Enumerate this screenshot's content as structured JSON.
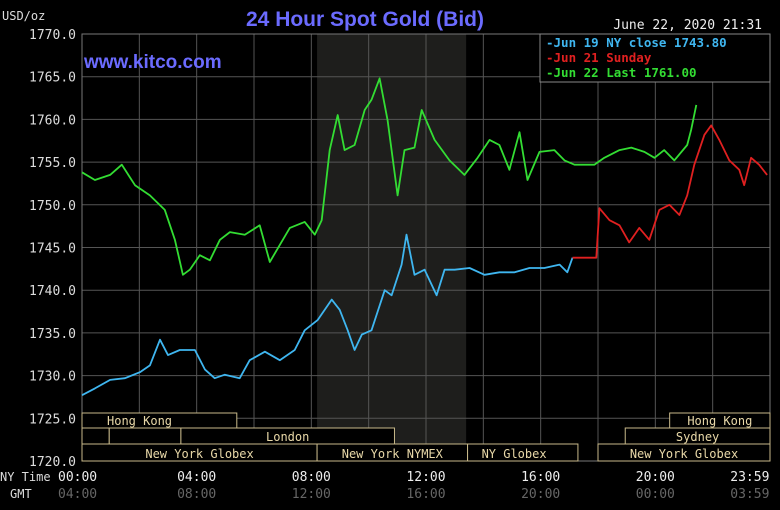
{
  "chart_data": {
    "type": "line",
    "title": "24 Hour Spot Gold (Bid)",
    "site": "www.kitco.com",
    "timestamp": "June 22, 2020 21:31",
    "ylabel": "USD/oz",
    "ylim": [
      1720,
      1770
    ],
    "yticks": [
      "1770.0",
      "1765.0",
      "1760.0",
      "1755.0",
      "1750.0",
      "1745.0",
      "1740.0",
      "1735.0",
      "1730.0",
      "1725.0",
      "1720.0"
    ],
    "xlim": [
      0,
      24
    ],
    "x_row_label": "NY Time",
    "gmt_row_label": "GMT",
    "xticks": [
      {
        "h": 0,
        "ny": "00:00",
        "gmt": "04:00"
      },
      {
        "h": 4,
        "ny": "04:00",
        "gmt": "08:00"
      },
      {
        "h": 8,
        "ny": "08:00",
        "gmt": "12:00"
      },
      {
        "h": 12,
        "ny": "12:00",
        "gmt": "16:00"
      },
      {
        "h": 16,
        "ny": "16:00",
        "gmt": "20:00"
      },
      {
        "h": 20,
        "ny": "20:00",
        "gmt": "00:00"
      },
      {
        "h": 23.98,
        "ny": "23:59",
        "gmt": "03:59"
      }
    ],
    "shaded_range": [
      8.2,
      13.4
    ],
    "legend": [
      {
        "label": "-Jun 19 NY close 1743.80",
        "color": "#3fb6f0"
      },
      {
        "label": "-Jun 21 Sunday",
        "color": "#e02020"
      },
      {
        "label": "-Jun 22 Last 1761.00",
        "color": "#33dd33"
      }
    ],
    "series": [
      {
        "name": "Jun 22",
        "color": "#33dd33",
        "points": [
          [
            0,
            1753.8
          ],
          [
            0.45,
            1752.9
          ],
          [
            0.98,
            1753.5
          ],
          [
            1.39,
            1754.7
          ],
          [
            1.85,
            1752.3
          ],
          [
            2.37,
            1751.1
          ],
          [
            2.89,
            1749.4
          ],
          [
            3.24,
            1745.9
          ],
          [
            3.52,
            1741.8
          ],
          [
            3.76,
            1742.4
          ],
          [
            4.11,
            1744.1
          ],
          [
            4.46,
            1743.5
          ],
          [
            4.81,
            1745.9
          ],
          [
            5.16,
            1746.8
          ],
          [
            5.68,
            1746.5
          ],
          [
            6.2,
            1747.6
          ],
          [
            6.55,
            1743.3
          ],
          [
            6.9,
            1745.3
          ],
          [
            7.25,
            1747.3
          ],
          [
            7.77,
            1748.0
          ],
          [
            8.12,
            1746.5
          ],
          [
            8.36,
            1748.2
          ],
          [
            8.64,
            1756.4
          ],
          [
            8.92,
            1760.5
          ],
          [
            9.16,
            1756.4
          ],
          [
            9.51,
            1757.0
          ],
          [
            9.86,
            1761.1
          ],
          [
            10.1,
            1762.3
          ],
          [
            10.38,
            1764.8
          ],
          [
            10.66,
            1759.9
          ],
          [
            11.01,
            1751.1
          ],
          [
            11.25,
            1756.4
          ],
          [
            11.6,
            1756.7
          ],
          [
            11.85,
            1761.1
          ],
          [
            12.3,
            1757.6
          ],
          [
            12.82,
            1755.2
          ],
          [
            13.34,
            1753.5
          ],
          [
            13.8,
            1755.5
          ],
          [
            14.22,
            1757.6
          ],
          [
            14.56,
            1757.0
          ],
          [
            14.91,
            1754.1
          ],
          [
            15.26,
            1758.5
          ],
          [
            15.54,
            1752.9
          ],
          [
            15.96,
            1756.2
          ],
          [
            16.48,
            1756.4
          ],
          [
            16.83,
            1755.2
          ],
          [
            17.18,
            1754.7
          ],
          [
            17.87,
            1754.7
          ],
          [
            18.22,
            1755.5
          ],
          [
            18.75,
            1756.4
          ],
          [
            19.16,
            1756.7
          ],
          [
            19.62,
            1756.2
          ],
          [
            19.97,
            1755.5
          ],
          [
            20.31,
            1756.4
          ],
          [
            20.66,
            1755.2
          ],
          [
            21.11,
            1757.0
          ],
          [
            21.25,
            1758.8
          ],
          [
            21.43,
            1761.7
          ]
        ]
      },
      {
        "name": "Jun 19",
        "color": "#3fb6f0",
        "points": [
          [
            0,
            1727.7
          ],
          [
            0.45,
            1728.5
          ],
          [
            0.98,
            1729.5
          ],
          [
            1.5,
            1729.7
          ],
          [
            2.02,
            1730.4
          ],
          [
            2.37,
            1731.2
          ],
          [
            2.72,
            1734.2
          ],
          [
            3.0,
            1732.4
          ],
          [
            3.41,
            1733.0
          ],
          [
            3.94,
            1733.0
          ],
          [
            4.29,
            1730.7
          ],
          [
            4.63,
            1729.7
          ],
          [
            4.98,
            1730.1
          ],
          [
            5.5,
            1729.7
          ],
          [
            5.85,
            1731.8
          ],
          [
            6.38,
            1732.8
          ],
          [
            6.9,
            1731.8
          ],
          [
            7.42,
            1733.0
          ],
          [
            7.77,
            1735.3
          ],
          [
            8.22,
            1736.5
          ],
          [
            8.71,
            1738.9
          ],
          [
            8.99,
            1737.7
          ],
          [
            9.27,
            1735.3
          ],
          [
            9.51,
            1733.0
          ],
          [
            9.76,
            1734.8
          ],
          [
            10.1,
            1735.3
          ],
          [
            10.56,
            1740.0
          ],
          [
            10.8,
            1739.4
          ],
          [
            11.15,
            1743.0
          ],
          [
            11.32,
            1746.5
          ],
          [
            11.6,
            1741.8
          ],
          [
            11.95,
            1742.4
          ],
          [
            12.37,
            1739.4
          ],
          [
            12.65,
            1742.4
          ],
          [
            13.0,
            1742.4
          ],
          [
            13.52,
            1742.6
          ],
          [
            14.04,
            1741.8
          ],
          [
            14.56,
            1742.1
          ],
          [
            15.09,
            1742.1
          ],
          [
            15.61,
            1742.6
          ],
          [
            16.13,
            1742.6
          ],
          [
            16.66,
            1743.0
          ],
          [
            16.93,
            1742.1
          ],
          [
            17.11,
            1743.8
          ]
        ]
      },
      {
        "name": "Jun 21",
        "color": "#e02020",
        "points": [
          [
            17.11,
            1743.8
          ],
          [
            17.94,
            1743.8
          ],
          [
            18.05,
            1749.6
          ],
          [
            18.4,
            1748.2
          ],
          [
            18.75,
            1747.6
          ],
          [
            19.09,
            1745.6
          ],
          [
            19.44,
            1747.3
          ],
          [
            19.79,
            1745.9
          ],
          [
            20.14,
            1749.4
          ],
          [
            20.49,
            1750.0
          ],
          [
            20.84,
            1748.8
          ],
          [
            21.11,
            1751.1
          ],
          [
            21.36,
            1754.7
          ],
          [
            21.71,
            1758.2
          ],
          [
            21.95,
            1759.3
          ],
          [
            22.23,
            1757.6
          ],
          [
            22.58,
            1755.2
          ],
          [
            22.93,
            1754.1
          ],
          [
            23.1,
            1752.3
          ],
          [
            23.34,
            1755.5
          ],
          [
            23.62,
            1754.7
          ],
          [
            23.9,
            1753.5
          ]
        ]
      }
    ],
    "sessions": [
      {
        "label": "Hong Kong",
        "row": 0,
        "start": 0,
        "end": 5.4
      },
      {
        "label": "Hong Kong",
        "row": 0,
        "start": 20.5,
        "end": 24
      },
      {
        "label": "",
        "row": 1,
        "start": 0,
        "end": 0.95
      },
      {
        "label": "",
        "row": 1,
        "start": 0.95,
        "end": 3.45
      },
      {
        "label": "London",
        "row": 1,
        "start": 3.45,
        "end": 10.9
      },
      {
        "label": "Sydney",
        "row": 1,
        "start": 18.95,
        "end": 24
      },
      {
        "label": "New York Globex",
        "row": 2,
        "start": 0,
        "end": 8.2
      },
      {
        "label": "New York NYMEX",
        "row": 2,
        "start": 8.2,
        "end": 13.45
      },
      {
        "label": "NY Globex",
        "row": 2,
        "start": 13.45,
        "end": 17.3
      },
      {
        "label": "New York Globex",
        "row": 2,
        "start": 18.0,
        "end": 24
      }
    ]
  }
}
